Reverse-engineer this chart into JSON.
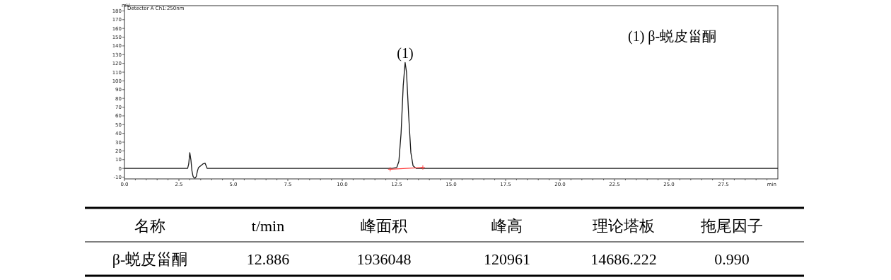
{
  "chart_data": [
    {
      "type": "line",
      "xlabel": "min",
      "ylabel": "mV",
      "xlim": [
        0,
        30
      ],
      "ylim": [
        -12,
        186
      ],
      "xticks": [
        {
          "value": 0,
          "label": "0.0"
        },
        {
          "value": 0.5,
          "label": null
        },
        {
          "value": 1,
          "label": null
        },
        {
          "value": 1.5,
          "label": null
        },
        {
          "value": 2,
          "label": null
        },
        {
          "value": 2.5,
          "label": "2.5"
        },
        {
          "value": 3,
          "label": null
        },
        {
          "value": 3.5,
          "label": null
        },
        {
          "value": 4,
          "label": null
        },
        {
          "value": 4.5,
          "label": null
        },
        {
          "value": 5,
          "label": "5.0"
        },
        {
          "value": 5.5,
          "label": null
        },
        {
          "value": 6,
          "label": null
        },
        {
          "value": 6.5,
          "label": null
        },
        {
          "value": 7,
          "label": null
        },
        {
          "value": 7.5,
          "label": "7.5"
        },
        {
          "value": 8,
          "label": null
        },
        {
          "value": 8.5,
          "label": null
        },
        {
          "value": 9,
          "label": null
        },
        {
          "value": 9.5,
          "label": null
        },
        {
          "value": 10,
          "label": "10.0"
        },
        {
          "value": 10.5,
          "label": null
        },
        {
          "value": 11,
          "label": null
        },
        {
          "value": 11.5,
          "label": null
        },
        {
          "value": 12,
          "label": null
        },
        {
          "value": 12.5,
          "label": "12.5"
        },
        {
          "value": 13,
          "label": null
        },
        {
          "value": 13.5,
          "label": null
        },
        {
          "value": 14,
          "label": null
        },
        {
          "value": 14.5,
          "label": null
        },
        {
          "value": 15,
          "label": "15.0"
        },
        {
          "value": 15.5,
          "label": null
        },
        {
          "value": 16,
          "label": null
        },
        {
          "value": 16.5,
          "label": null
        },
        {
          "value": 17,
          "label": null
        },
        {
          "value": 17.5,
          "label": "17.5"
        },
        {
          "value": 18,
          "label": null
        },
        {
          "value": 18.5,
          "label": null
        },
        {
          "value": 19,
          "label": null
        },
        {
          "value": 19.5,
          "label": null
        },
        {
          "value": 20,
          "label": "20.0"
        },
        {
          "value": 20.5,
          "label": null
        },
        {
          "value": 21,
          "label": null
        },
        {
          "value": 21.5,
          "label": null
        },
        {
          "value": 22,
          "label": null
        },
        {
          "value": 22.5,
          "label": "22.5"
        },
        {
          "value": 23,
          "label": null
        },
        {
          "value": 23.5,
          "label": null
        },
        {
          "value": 24,
          "label": null
        },
        {
          "value": 24.5,
          "label": null
        },
        {
          "value": 25,
          "label": "25.0"
        },
        {
          "value": 25.5,
          "label": null
        },
        {
          "value": 26,
          "label": null
        },
        {
          "value": 26.5,
          "label": null
        },
        {
          "value": 27,
          "label": null
        },
        {
          "value": 27.5,
          "label": "27.5"
        },
        {
          "value": 28,
          "label": null
        },
        {
          "value": 28.5,
          "label": null
        },
        {
          "value": 29,
          "label": null
        },
        {
          "value": 29.5,
          "label": null
        }
      ],
      "yticks": [
        -10,
        0,
        10,
        20,
        30,
        40,
        50,
        60,
        70,
        80,
        90,
        100,
        110,
        120,
        130,
        140,
        150,
        160,
        170,
        180
      ],
      "annotations": [
        "Detector A Ch1:250nm",
        {
          "text": "(1)",
          "x": 12.886,
          "y": 121
        },
        "(1)  β-蜕皮甾酮"
      ],
      "series": [
        {
          "color": "#1a1a1a",
          "marker": "none",
          "x": [
            0,
            2.5,
            2.9,
            2.95,
            3.0,
            3.05,
            3.1,
            3.15,
            3.2,
            3.25,
            3.3,
            3.35,
            3.4,
            3.5,
            3.6,
            3.7,
            3.75,
            3.8,
            5,
            8,
            10,
            12,
            12.3,
            12.5,
            12.6,
            12.7,
            12.8,
            12.886,
            12.95,
            13.05,
            13.15,
            13.25,
            13.4,
            15,
            20,
            25,
            30
          ],
          "values": [
            0,
            0,
            0,
            5,
            18,
            10,
            -3,
            -9,
            -11,
            -11,
            -9,
            -3,
            1,
            3,
            5,
            6,
            3,
            0,
            0,
            0,
            0,
            0,
            0,
            1,
            8,
            40,
            95,
            121,
            110,
            60,
            18,
            3,
            0,
            0,
            0,
            0,
            0
          ]
        },
        {
          "color": "#ff4040",
          "marker": "cross",
          "x": [
            12.2,
            13.7
          ],
          "values": [
            -1,
            1
          ]
        }
      ]
    },
    {
      "type": "other",
      "annotations": [
        "名称",
        "t/min",
        "峰面积",
        "峰高",
        "理论塔板",
        "拖尾因子",
        "β-蜕皮甾酮",
        "12.886",
        "1936048",
        "120961",
        "14686.222",
        "0.990"
      ]
    }
  ]
}
